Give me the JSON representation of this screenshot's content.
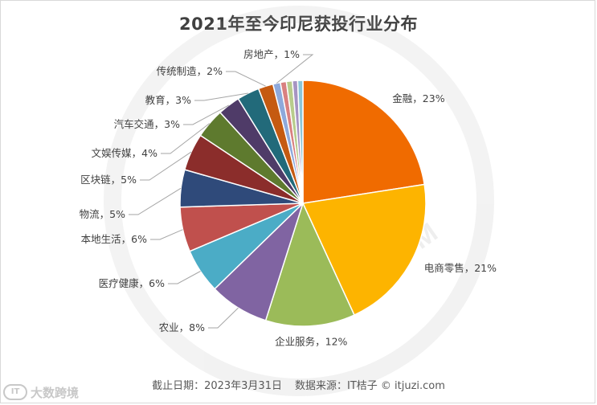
{
  "chart_data": {
    "type": "pie",
    "title": "2021年至今印尼获投行业分布",
    "slices": [
      {
        "label": "金融",
        "value": 23,
        "display": "金融，23%",
        "color": "#F06B00"
      },
      {
        "label": "电商零售",
        "value": 21,
        "display": "电商零售，21%",
        "color": "#FDB400"
      },
      {
        "label": "企业服务",
        "value": 12,
        "display": "企业服务，12%",
        "color": "#9BBB59"
      },
      {
        "label": "农业",
        "value": 8,
        "display": "农业，8%",
        "color": "#8064A2"
      },
      {
        "label": "医疗健康",
        "value": 6,
        "display": "医疗健康，6%",
        "color": "#4BACC6"
      },
      {
        "label": "本地生活",
        "value": 6,
        "display": "本地生活，6%",
        "color": "#C0504D"
      },
      {
        "label": "物流",
        "value": 5,
        "display": "物流，5%",
        "color": "#2F4A7A"
      },
      {
        "label": "区块链",
        "value": 5,
        "display": "区块链，5%",
        "color": "#8B2D2B"
      },
      {
        "label": "文娱传媒",
        "value": 4,
        "display": "文娱传媒，4%",
        "color": "#5E7A2E"
      },
      {
        "label": "汽车交通",
        "value": 3,
        "display": "汽车交通，3%",
        "color": "#4F3B68"
      },
      {
        "label": "教育",
        "value": 3,
        "display": "教育，3%",
        "color": "#226A7A"
      },
      {
        "label": "传统制造",
        "value": 2,
        "display": "传统制造，2%",
        "color": "#C55A11"
      },
      {
        "label": "房地产",
        "value": 1,
        "display": "房地产，1%",
        "color": "#8EA9DB"
      },
      {
        "label": "",
        "value": 0.8,
        "display": "",
        "color": "#D98080"
      },
      {
        "label": "",
        "value": 0.8,
        "display": "",
        "color": "#B8CC8C"
      },
      {
        "label": "",
        "value": 0.7,
        "display": "",
        "color": "#A694C2"
      },
      {
        "label": "",
        "value": 0.7,
        "display": "",
        "color": "#8BC7D8"
      }
    ]
  },
  "footer": {
    "date": "截止日期：2023年3月31日",
    "source": "数据来源：IT桔子 © itjuzi.com"
  },
  "watermark": {
    "text": "ITJUZI.COM",
    "corner_mark": "IT",
    "corner_text": "大数跨境"
  }
}
